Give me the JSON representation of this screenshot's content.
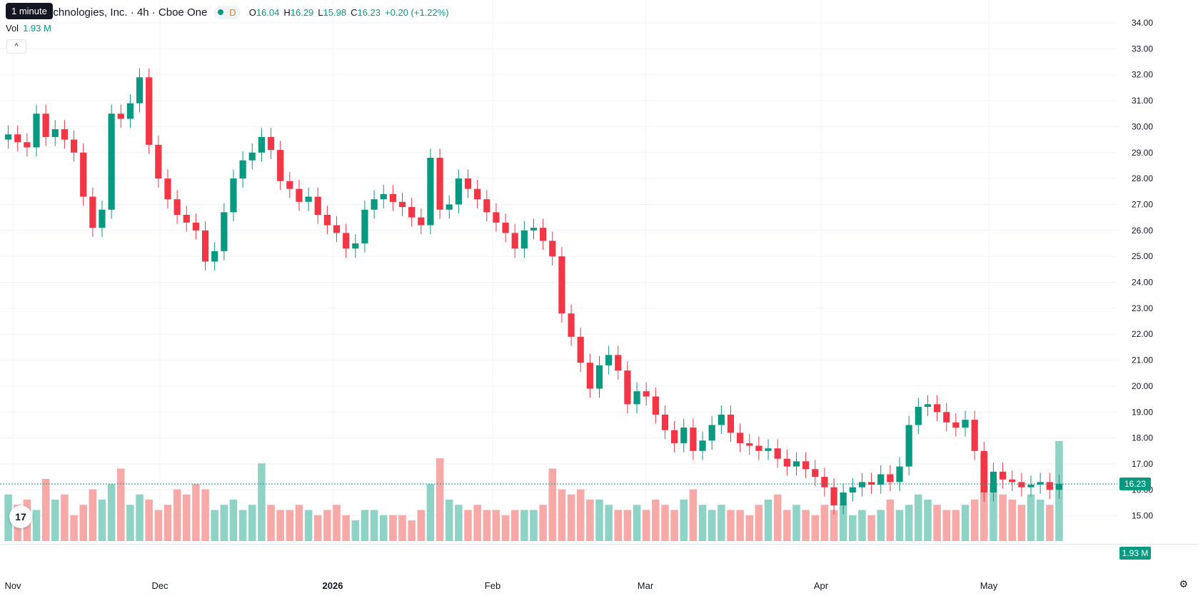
{
  "legend": {
    "symbol": "echnologies, Inc. · 4h · Cboe One",
    "interval_badge": "D",
    "o_label": "O",
    "o": "16.04",
    "h_label": "H",
    "h": "16.29",
    "l_label": "L",
    "l": "15.98",
    "c_label": "C",
    "c": "16.23",
    "change": "+0.20 (+1.22%)"
  },
  "tooltip": "1 minute",
  "volume": {
    "label": "Vol",
    "value": "1.93 M"
  },
  "collapse_glyph": "^",
  "logo_text": "17",
  "settings_icon": "gear-icon",
  "colors": {
    "up": "#089981",
    "down": "#f23645",
    "up_vol": "#8fd3c6",
    "down_vol": "#f7a9a7",
    "grid": "#f0f3fa"
  },
  "chart_data": {
    "type": "candlestick",
    "price_axis": {
      "min": 14.0,
      "max": 34.0,
      "ticks": [
        "15.00",
        "16.00",
        "17.00",
        "18.00",
        "19.00",
        "20.00",
        "21.00",
        "22.00",
        "23.00",
        "24.00",
        "25.00",
        "26.00",
        "27.00",
        "28.00",
        "29.00",
        "30.00",
        "31.00",
        "32.00",
        "33.00",
        "34.00"
      ]
    },
    "time_axis": {
      "labels": [
        "Nov",
        "Dec",
        "2026",
        "Feb",
        "Mar",
        "Apr",
        "May"
      ]
    },
    "last_price_label": "16.23",
    "last_price": 16.23,
    "last_volume_label": "1.93 M",
    "series": {
      "close": [
        29.7,
        29.4,
        29.2,
        30.5,
        29.6,
        29.9,
        29.5,
        29.0,
        27.3,
        26.1,
        26.8,
        30.5,
        30.3,
        30.9,
        31.9,
        29.3,
        28.0,
        27.2,
        26.6,
        26.3,
        26.0,
        24.8,
        25.2,
        26.7,
        28.0,
        28.7,
        29.0,
        29.6,
        29.1,
        27.9,
        27.6,
        27.1,
        27.3,
        26.6,
        26.2,
        25.9,
        25.3,
        25.5,
        26.8,
        27.2,
        27.4,
        27.1,
        26.9,
        26.5,
        26.2,
        28.8,
        26.8,
        27.0,
        28.0,
        27.6,
        27.2,
        26.7,
        26.3,
        25.9,
        25.3,
        26.0,
        26.1,
        25.6,
        25.0,
        22.8,
        21.9,
        20.9,
        19.9,
        20.8,
        21.2,
        20.6,
        19.3,
        19.8,
        19.6,
        18.9,
        18.3,
        17.8,
        18.4,
        17.5,
        17.9,
        18.5,
        18.9,
        18.2,
        17.8,
        17.7,
        17.5,
        17.6,
        17.2,
        16.9,
        17.1,
        16.8,
        16.5,
        16.1,
        15.4,
        15.9,
        16.1,
        16.3,
        16.2,
        16.6,
        16.3,
        16.9,
        18.5,
        19.2,
        19.3,
        19.0,
        18.6,
        18.4,
        18.7,
        17.5,
        15.9,
        16.7,
        16.4,
        16.3,
        16.1,
        16.2,
        16.3,
        16.0,
        16.23
      ],
      "volume": [
        0.9,
        0.7,
        0.8,
        0.6,
        1.2,
        0.8,
        0.9,
        0.5,
        0.7,
        1.0,
        0.8,
        1.1,
        1.4,
        0.7,
        0.9,
        0.8,
        0.6,
        0.7,
        1.0,
        0.9,
        1.1,
        1.0,
        0.6,
        0.7,
        0.8,
        0.6,
        0.7,
        1.5,
        0.7,
        0.6,
        0.6,
        0.7,
        0.6,
        0.5,
        0.6,
        0.7,
        0.5,
        0.4,
        0.6,
        0.6,
        0.5,
        0.5,
        0.5,
        0.4,
        0.6,
        1.1,
        1.6,
        0.8,
        0.7,
        0.6,
        0.7,
        0.6,
        0.6,
        0.5,
        0.6,
        0.6,
        0.6,
        0.7,
        1.4,
        1.0,
        0.9,
        1.0,
        0.8,
        0.8,
        0.7,
        0.6,
        0.6,
        0.7,
        0.6,
        0.8,
        0.7,
        0.6,
        0.8,
        1.0,
        0.7,
        0.6,
        0.7,
        0.6,
        0.6,
        0.5,
        0.7,
        0.8,
        0.9,
        0.6,
        0.7,
        0.6,
        0.5,
        0.7,
        0.6,
        0.7,
        0.5,
        0.6,
        0.5,
        0.6,
        0.8,
        0.6,
        0.7,
        0.9,
        0.8,
        0.7,
        0.6,
        0.6,
        0.7,
        0.8,
        1.7,
        1.1,
        0.9,
        0.8,
        0.7,
        0.9,
        0.8,
        0.7,
        1.93
      ]
    }
  }
}
